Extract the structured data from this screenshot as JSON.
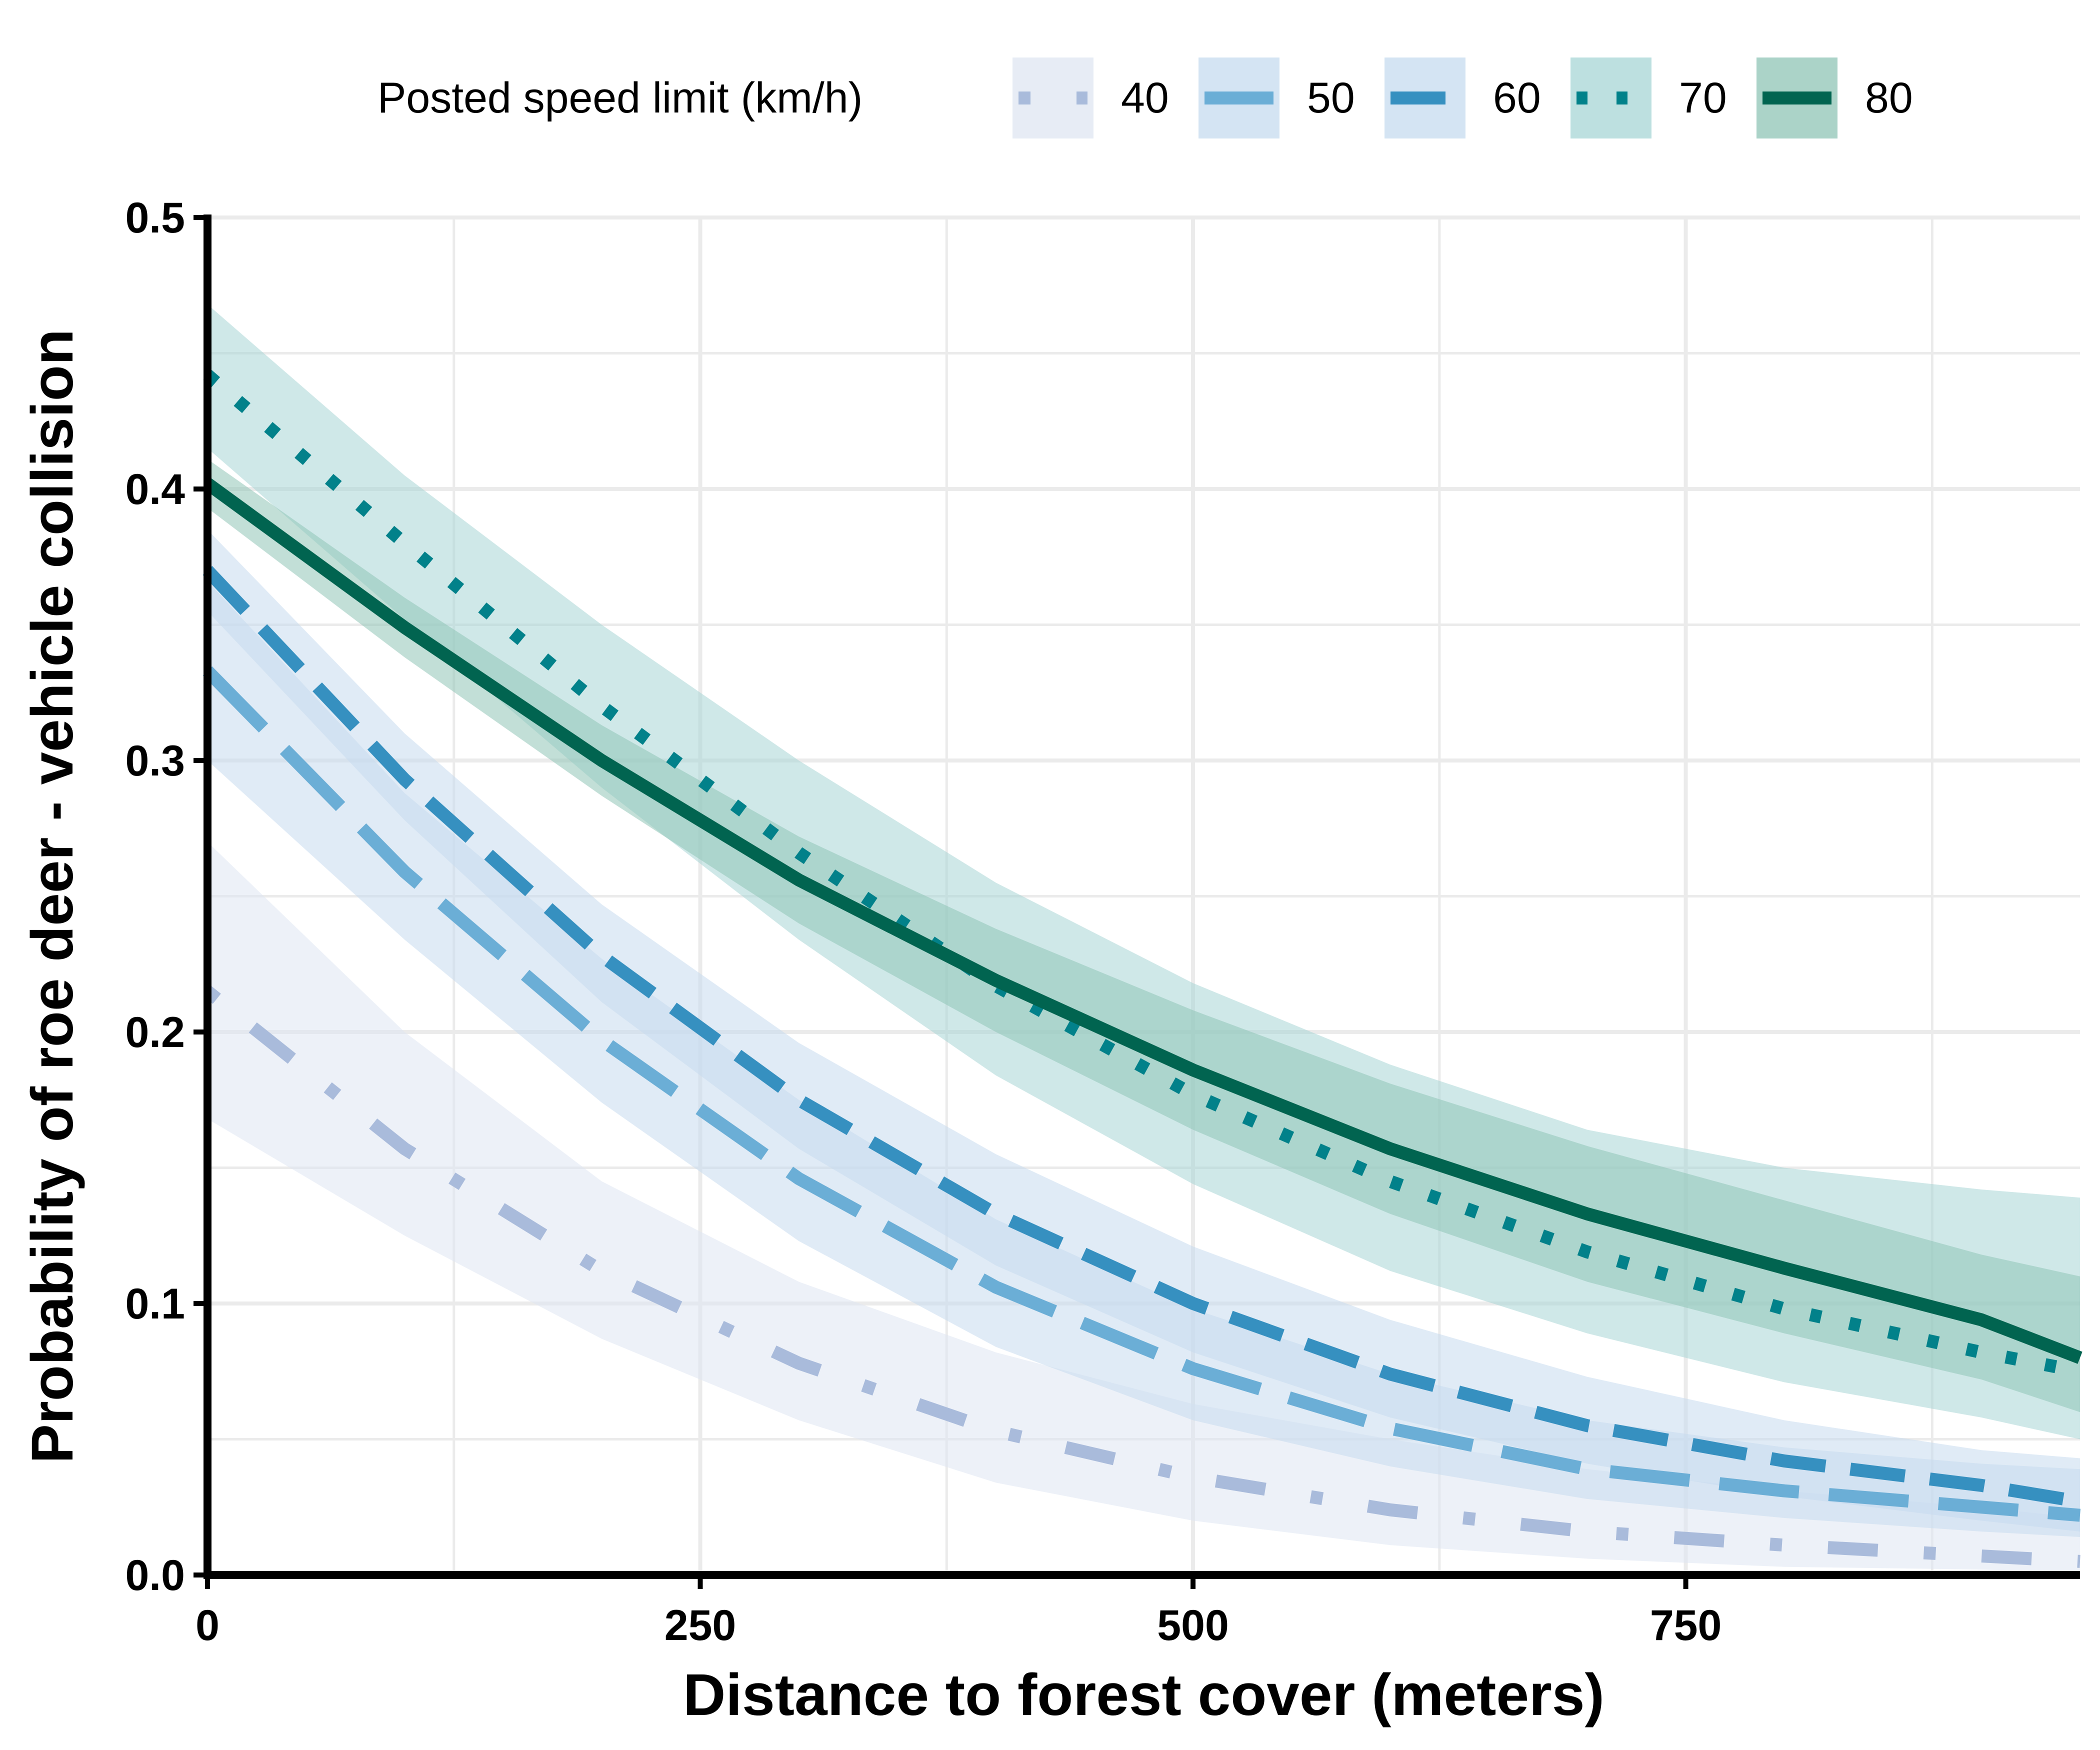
{
  "chart_data": {
    "type": "line",
    "xlabel": "Distance to forest cover (meters)",
    "ylabel": "Probability of roe deer - vehicle collision",
    "xlim": [
      0,
      950
    ],
    "ylim": [
      0,
      0.5
    ],
    "x_ticks": [
      0,
      250,
      500,
      750
    ],
    "x_tick_labels": [
      "0",
      "250",
      "500",
      "750"
    ],
    "y_ticks": [
      0,
      0.1,
      0.2,
      0.3,
      0.4,
      0.5
    ],
    "y_tick_labels": [
      "0.0",
      "0.1",
      "0.2",
      "0.3",
      "0.4",
      "0.5"
    ],
    "grid": true,
    "legend": {
      "title": "Posted speed limit (km/h)",
      "position": "top"
    },
    "x": [
      0,
      100,
      200,
      300,
      400,
      500,
      600,
      700,
      800,
      900,
      950
    ],
    "series": [
      {
        "name": "40",
        "color": "#a9bbdb",
        "fill": "#dfe6f2",
        "line_style": "dotdash",
        "values": [
          0.215,
          0.157,
          0.112,
          0.078,
          0.053,
          0.036,
          0.024,
          0.016,
          0.011,
          0.007,
          0.005
        ],
        "lower": [
          0.168,
          0.125,
          0.087,
          0.057,
          0.034,
          0.02,
          0.011,
          0.006,
          0.003,
          0.002,
          0.001
        ],
        "upper": [
          0.27,
          0.2,
          0.145,
          0.108,
          0.082,
          0.063,
          0.05,
          0.039,
          0.031,
          0.025,
          0.021
        ]
      },
      {
        "name": "50",
        "color": "#6baed6",
        "fill": "#c6dbef",
        "line_style": "longdash",
        "values": [
          0.333,
          0.259,
          0.197,
          0.146,
          0.106,
          0.076,
          0.054,
          0.039,
          0.031,
          0.025,
          0.022
        ],
        "lower": [
          0.3,
          0.234,
          0.174,
          0.123,
          0.084,
          0.057,
          0.04,
          0.028,
          0.021,
          0.016,
          0.014
        ],
        "upper": [
          0.366,
          0.288,
          0.227,
          0.175,
          0.131,
          0.098,
          0.074,
          0.057,
          0.047,
          0.041,
          0.039
        ]
      },
      {
        "name": "60",
        "color": "#3690c0",
        "fill": "#c6dbef",
        "line_style": "dashed",
        "values": [
          0.37,
          0.293,
          0.228,
          0.175,
          0.133,
          0.1,
          0.074,
          0.055,
          0.042,
          0.033,
          0.027
        ],
        "lower": [
          0.355,
          0.278,
          0.211,
          0.157,
          0.114,
          0.082,
          0.058,
          0.041,
          0.029,
          0.02,
          0.016
        ],
        "upper": [
          0.385,
          0.31,
          0.247,
          0.196,
          0.155,
          0.121,
          0.094,
          0.073,
          0.057,
          0.046,
          0.043
        ]
      },
      {
        "name": "70",
        "color": "#02818a",
        "fill": "#a7d5d5",
        "line_style": "dotted",
        "values": [
          0.442,
          0.38,
          0.32,
          0.266,
          0.217,
          0.177,
          0.145,
          0.119,
          0.098,
          0.082,
          0.075
        ],
        "lower": [
          0.415,
          0.352,
          0.29,
          0.234,
          0.184,
          0.144,
          0.112,
          0.089,
          0.071,
          0.058,
          0.05
        ],
        "upper": [
          0.468,
          0.405,
          0.35,
          0.3,
          0.255,
          0.218,
          0.188,
          0.164,
          0.15,
          0.142,
          0.139
        ]
      },
      {
        "name": "80",
        "color": "#016450",
        "fill": "#8fc4b6",
        "line_style": "solid",
        "values": [
          0.402,
          0.349,
          0.3,
          0.256,
          0.219,
          0.186,
          0.157,
          0.133,
          0.113,
          0.094,
          0.08
        ],
        "lower": [
          0.393,
          0.338,
          0.287,
          0.24,
          0.2,
          0.164,
          0.133,
          0.108,
          0.089,
          0.072,
          0.06
        ],
        "upper": [
          0.411,
          0.36,
          0.313,
          0.272,
          0.238,
          0.208,
          0.181,
          0.158,
          0.138,
          0.118,
          0.11
        ]
      }
    ]
  }
}
